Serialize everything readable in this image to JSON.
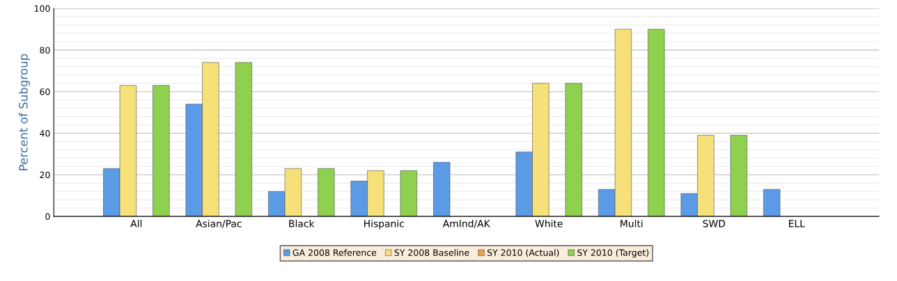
{
  "chart_data": {
    "type": "bar",
    "ylabel": "Percent of Subgroup",
    "categories": [
      "All",
      "Asian/Pac",
      "Black",
      "Hispanic",
      "AmInd/AK",
      "White",
      "Multi",
      "SWD",
      "ELL"
    ],
    "series": [
      {
        "name": "GA 2008 Reference",
        "color": "#5b9be6",
        "values": [
          23,
          54,
          12,
          17,
          26,
          31,
          13,
          11,
          13
        ]
      },
      {
        "name": "SY 2008 Baseline",
        "color": "#f5e07a",
        "values": [
          63,
          74,
          23,
          22,
          null,
          64,
          90,
          39,
          null
        ]
      },
      {
        "name": "SY 2010 (Actual)",
        "color": "#e8a050",
        "values": [
          null,
          null,
          null,
          null,
          null,
          null,
          null,
          null,
          null
        ]
      },
      {
        "name": "SY 2010 (Target)",
        "color": "#8fd14f",
        "values": [
          63,
          74,
          23,
          22,
          null,
          64,
          90,
          39,
          null
        ]
      }
    ],
    "ylim": [
      0,
      100
    ],
    "yticks": [
      0,
      20,
      40,
      60,
      80,
      100
    ],
    "grid": "y",
    "legend": "bottom"
  }
}
